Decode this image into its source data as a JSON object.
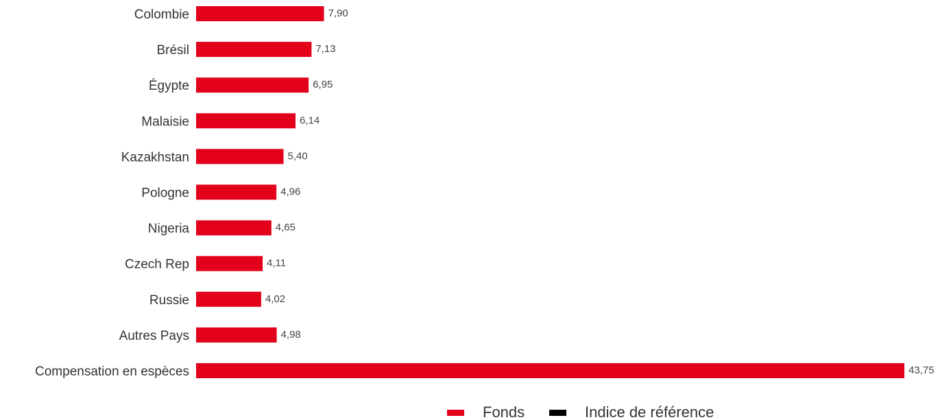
{
  "chart_data": {
    "type": "bar",
    "orientation": "horizontal",
    "categories": [
      "Colombie",
      "Brésil",
      "Égypte",
      "Malaisie",
      "Kazakhstan",
      "Pologne",
      "Nigeria",
      "Czech Rep",
      "Russie",
      "Autres Pays",
      "Compensation en espèces"
    ],
    "series": [
      {
        "name": "Fonds",
        "color": "#e2001a",
        "values": [
          7.9,
          7.13,
          6.95,
          6.14,
          5.4,
          4.96,
          4.65,
          4.11,
          4.02,
          4.98,
          43.75
        ],
        "value_labels": [
          "7,90",
          "7,13",
          "6,95",
          "6,14",
          "5,40",
          "4,96",
          "4,65",
          "4,11",
          "4,02",
          "4,98",
          "43,75"
        ]
      },
      {
        "name": "Indice de référence",
        "color": "#000000",
        "values": [
          null,
          null,
          null,
          null,
          null,
          null,
          null,
          null,
          null,
          null,
          null
        ]
      }
    ],
    "legend": "bottom"
  }
}
